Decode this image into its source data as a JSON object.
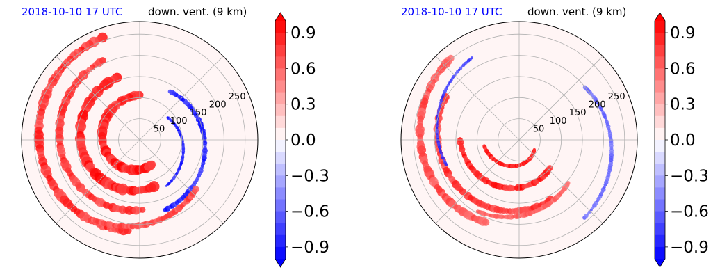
{
  "chart_data": [
    {
      "type": "heatmap",
      "title_left": "2018-10-10 17 UTC",
      "title_right": "down. vent. (9 km)",
      "projection": "polar",
      "radial_tick_labels": [
        "50",
        "100",
        "150",
        "200",
        "250"
      ],
      "radial_ticks": [
        50,
        100,
        150,
        200,
        250
      ],
      "r_max": 280,
      "grid": true,
      "colorbar": {
        "ticks": [
          0.9,
          0.6,
          0.3,
          0.0,
          -0.3,
          -0.6,
          -0.9
        ],
        "tick_labels": [
          "0.9",
          "0.6",
          "0.3",
          "0.0",
          "−0.3",
          "−0.6",
          "−0.9"
        ],
        "vmin": -1.0,
        "vmax": 1.0,
        "colormap": "bwr",
        "extend": "both",
        "positive_color": "#ff0000",
        "negative_color": "#0000ff",
        "zero_color": "#fff5f5"
      }
    },
    {
      "type": "heatmap",
      "title_left": "2018-10-10 17 UTC",
      "title_right": "down. vent. (9 km)",
      "projection": "polar",
      "radial_tick_labels": [
        "50",
        "100",
        "150",
        "200",
        "250"
      ],
      "radial_ticks": [
        50,
        100,
        150,
        200,
        250
      ],
      "r_max": 280,
      "grid": true,
      "colorbar": {
        "ticks": [
          0.9,
          0.6,
          0.3,
          0.0,
          -0.3,
          -0.6,
          -0.9
        ],
        "tick_labels": [
          "0.9",
          "0.6",
          "0.3",
          "0.0",
          "−0.3",
          "−0.6",
          "−0.9"
        ],
        "vmin": -1.0,
        "vmax": 1.0,
        "colormap": "bwr",
        "extend": "both",
        "positive_color": "#ff0000",
        "negative_color": "#0000ff",
        "zero_color": "#fff5f5"
      }
    }
  ]
}
